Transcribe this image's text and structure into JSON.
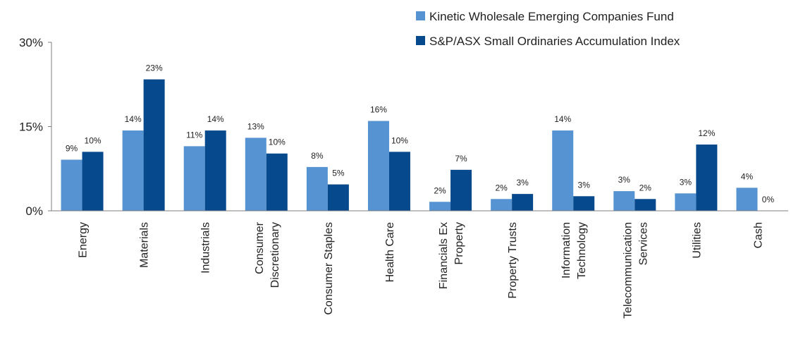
{
  "chart_data": {
    "type": "bar",
    "categories": [
      [
        "Energy"
      ],
      [
        "Materials"
      ],
      [
        "Industrials"
      ],
      [
        "Consumer",
        "Discretionary"
      ],
      [
        "Consumer Staples"
      ],
      [
        "Health Care"
      ],
      [
        "Financials Ex",
        "Property"
      ],
      [
        "Property Trusts"
      ],
      [
        "Information",
        "Technology"
      ],
      [
        "Telecommunication",
        "Services"
      ],
      [
        "Utilities"
      ],
      [
        "Cash"
      ]
    ],
    "series": [
      {
        "name": "Kinetic Wholesale Emerging Companies Fund",
        "color": "#5693d2",
        "values": [
          9.1,
          14.3,
          11.5,
          13.0,
          7.8,
          16.0,
          1.6,
          2.1,
          14.3,
          3.5,
          3.1,
          4.1
        ],
        "labels": [
          "9%",
          "14%",
          "11%",
          "13%",
          "8%",
          "16%",
          "2%",
          "2%",
          "14%",
          "3%",
          "3%",
          "4%"
        ]
      },
      {
        "name": "S&P/ASX Small Ordinaries Accumulation Index",
        "color": "#07498d",
        "values": [
          10.5,
          23.4,
          14.3,
          10.2,
          4.7,
          10.5,
          7.3,
          3.0,
          2.6,
          2.1,
          11.8,
          0.0
        ],
        "labels": [
          "10%",
          "23%",
          "14%",
          "10%",
          "5%",
          "10%",
          "7%",
          "3%",
          "3%",
          "2%",
          "12%",
          "0%"
        ]
      }
    ],
    "ylim": [
      0,
      30
    ],
    "yticks": [
      {
        "value": 0,
        "label": "0%"
      },
      {
        "value": 15,
        "label": "15%"
      },
      {
        "value": 30,
        "label": "30%"
      }
    ],
    "legend_position": "top-right",
    "grid": false
  }
}
